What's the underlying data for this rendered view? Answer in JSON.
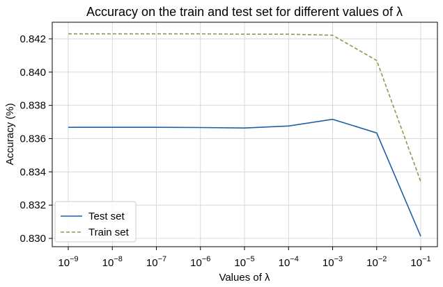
{
  "chart_data": {
    "type": "line",
    "title": "Accuracy on the train and test set for different values of λ",
    "xlabel": "Values of λ",
    "ylabel": "Accuracy (%)",
    "x_scale": "log",
    "x": [
      1e-09,
      1e-08,
      1e-07,
      1e-06,
      1e-05,
      0.0001,
      0.001,
      0.01,
      0.1
    ],
    "x_tick_exponents": [
      "−9",
      "−8",
      "−7",
      "−6",
      "−5",
      "−4",
      "−3",
      "−2",
      "−1"
    ],
    "ylim": [
      0.8295,
      0.843
    ],
    "y_ticks": [
      "0.830",
      "0.832",
      "0.834",
      "0.836",
      "0.838",
      "0.840",
      "0.842"
    ],
    "grid": true,
    "legend_position": "lower-left",
    "series": [
      {
        "name": "Test set",
        "color": "#1f5fa6",
        "dash": "solid",
        "values": [
          0.83668,
          0.83668,
          0.83668,
          0.83667,
          0.83664,
          0.83676,
          0.83716,
          0.83634,
          0.83013
        ]
      },
      {
        "name": "Train set",
        "color": "#8a9a4f",
        "dash": "dashed",
        "values": [
          0.8423,
          0.8423,
          0.8423,
          0.8423,
          0.84228,
          0.84228,
          0.84222,
          0.8407,
          0.83342
        ]
      }
    ]
  }
}
